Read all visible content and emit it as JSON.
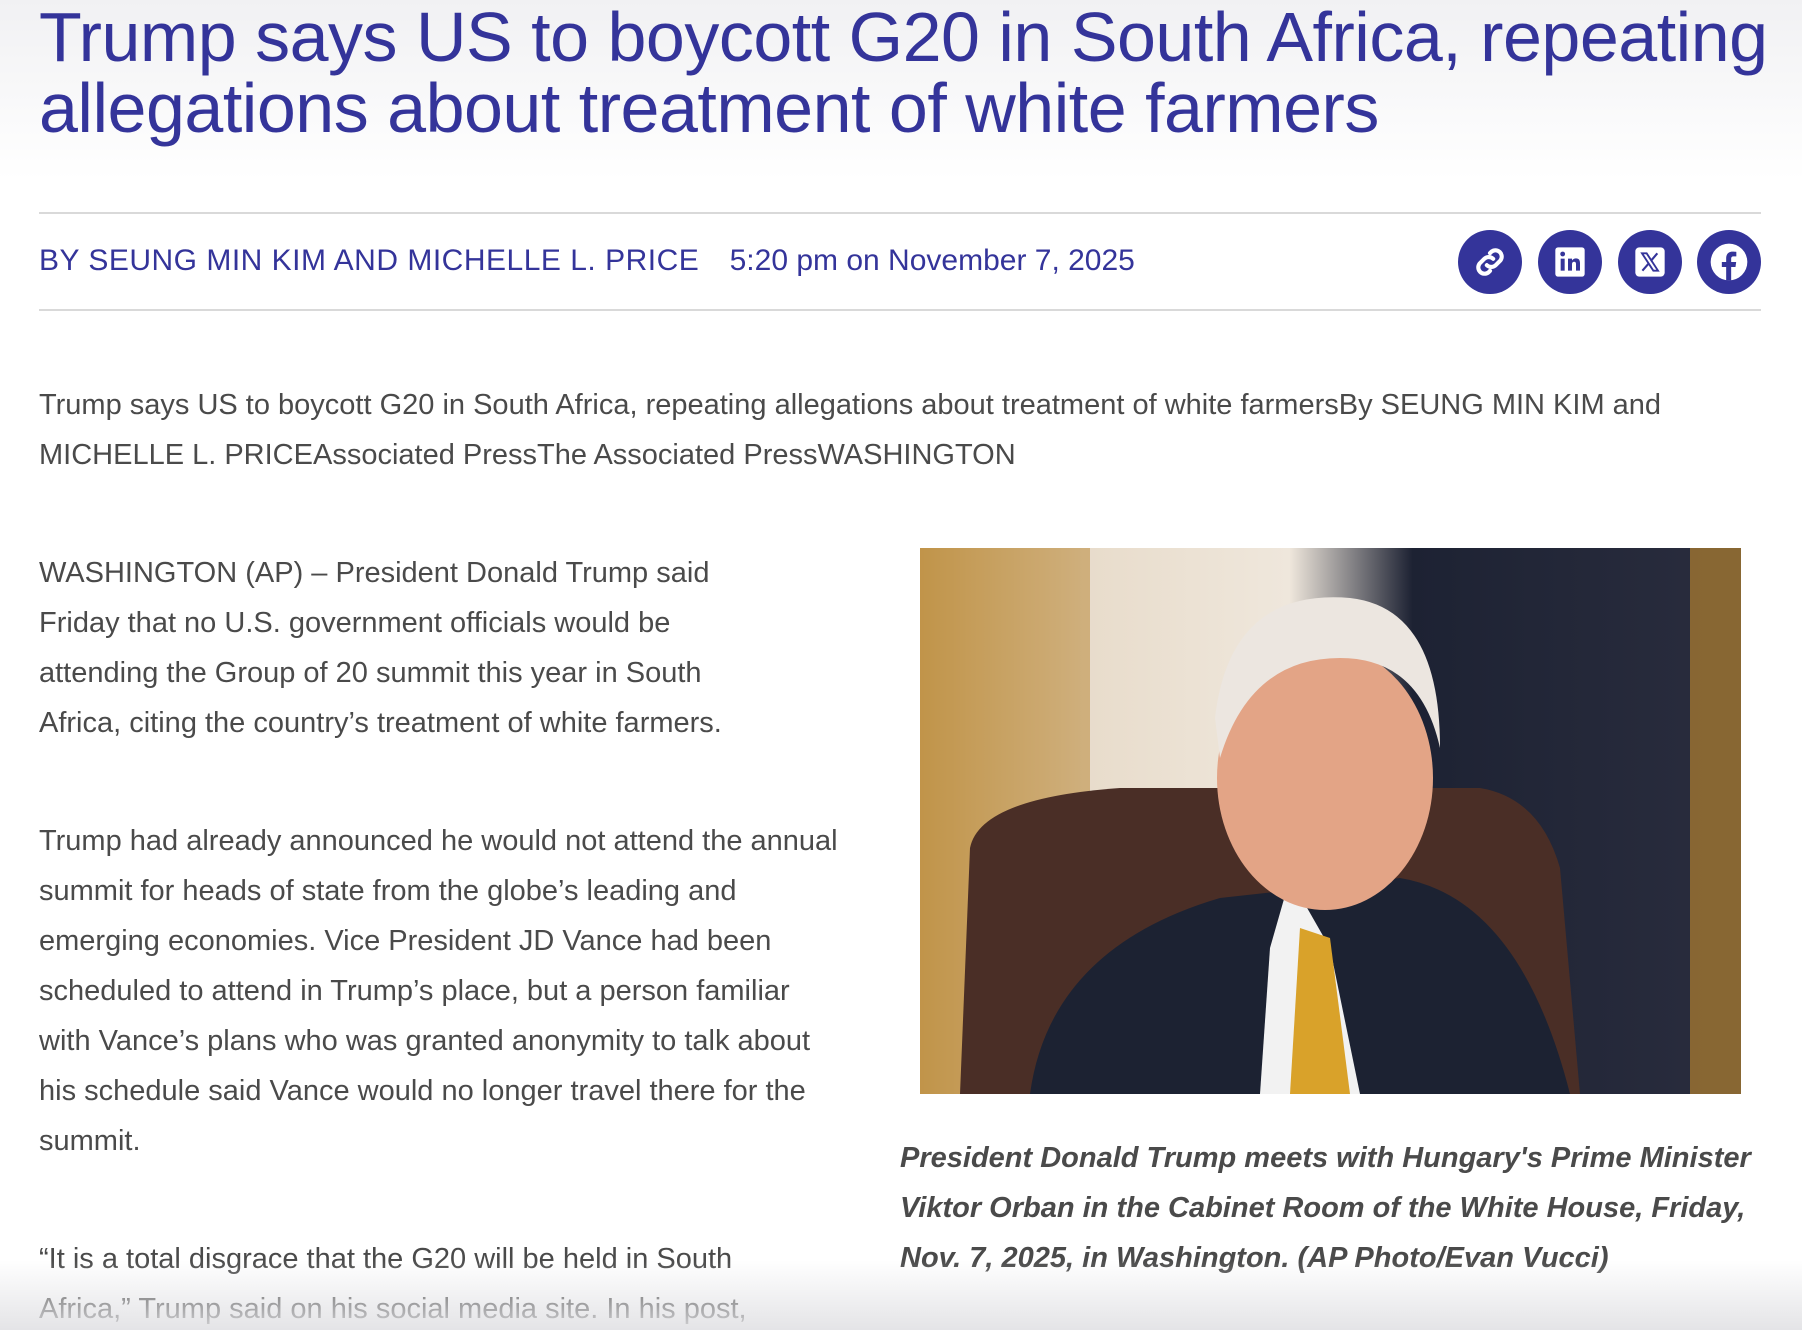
{
  "article": {
    "title": "Trump says US to boycott G20 in South Africa, repeating allegations about treatment of white farmers",
    "byline": "BY SEUNG MIN KIM AND MICHELLE L. PRICE",
    "date": "5:20 pm on November 7, 2025",
    "share_icons": [
      "link-icon",
      "linkedin-icon",
      "x-icon",
      "facebook-icon"
    ],
    "accent_color": "#34349a",
    "intro": "Trump says US to boycott G20 in South Africa, repeating allegations about treatment of white farmersBy SEUNG MIN KIM and MICHELLE L. PRICEAssociated PressThe Associated PressWASHINGTON",
    "paragraphs": [
      "WASHINGTON (AP) – President Donald Trump said Friday that no U.S. government officials would be attending the Group of 20 summit this year in South Africa, citing the country’s treatment of white farmers.",
      "Trump had already announced he would not attend the annual summit for heads of state from the globe’s leading and emerging economies. Vice President JD Vance had been scheduled to attend in Trump’s place, but a person familiar with Vance’s plans who was granted anonymity to talk about his schedule said Vance would no longer travel there for the summit.",
      "“It is a total disgrace that the G20 will be held in South Africa,” Trump said on his social media site. In his post,"
    ],
    "caption": "President Donald Trump meets with Hungary's Prime Minister Viktor Orban in the Cabinet Room of the White House, Friday, Nov. 7, 2025, in Washington. (AP Photo/Evan Vucci)"
  }
}
